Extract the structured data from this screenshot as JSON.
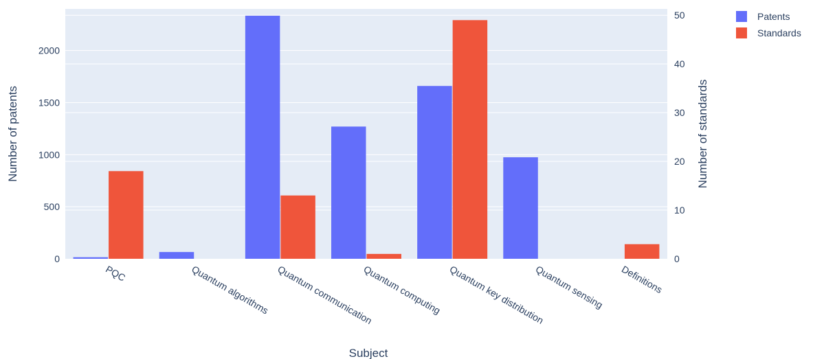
{
  "chart_data": {
    "type": "bar",
    "categories": [
      "PQC",
      "Quantum algorithms",
      "Quantum communication",
      "Quantum computing",
      "Quantum key distribution",
      "Quantum sensing",
      "Definitions"
    ],
    "series": [
      {
        "name": "Patents",
        "axis": "left",
        "color": "#636efa",
        "values": [
          15,
          65,
          2335,
          1270,
          1660,
          975,
          0
        ]
      },
      {
        "name": "Standards",
        "axis": "right",
        "color": "#ef553b",
        "values": [
          18,
          0,
          13,
          1,
          49,
          0,
          3
        ]
      }
    ],
    "xlabel": "Subject",
    "ylabel": "Number of patents",
    "y2label": "Number of standards",
    "ylim": [
      0,
      2400
    ],
    "y2lim": [
      0,
      51.3
    ],
    "yticks": [
      0,
      500,
      1000,
      1500,
      2000
    ],
    "y2ticks": [
      0,
      10,
      20,
      30,
      40,
      50
    ],
    "grid": true,
    "legend": "top-right",
    "background_color": "#e5ecf6"
  }
}
